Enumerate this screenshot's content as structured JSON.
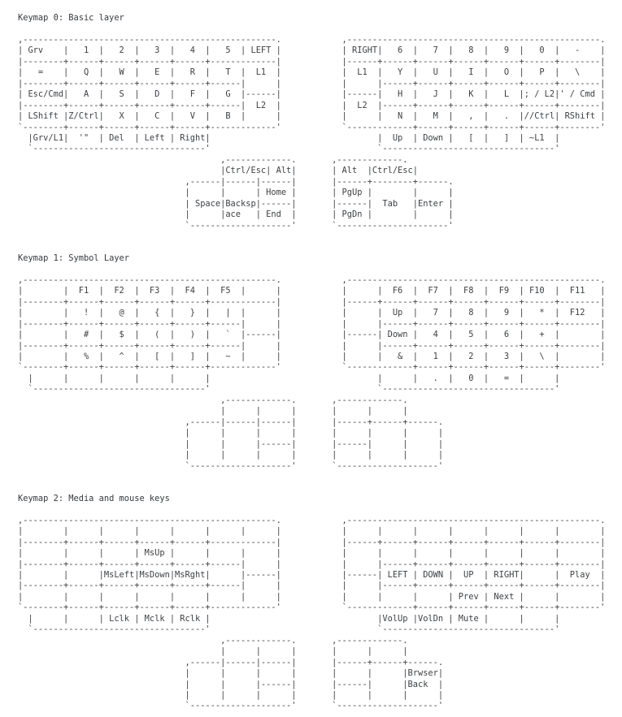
{
  "document": {
    "background_color": "#ffffff",
    "text_color": "#3c3f43"
  },
  "keymaps": [
    {
      "title": "Keymap 0: Basic layer",
      "art": ",--------------------------------------------------.            ,--------------------------------------------------.\n| Grv    |   1  |   2  |   3  |   4  |   5  | LEFT |            | RIGHT|   6  |   7  |   8  |   9  |   0  |   -    |\n|--------+------+------+------+------+-------------|            |------+------+------+------+------+------+--------|\n|   =    |   Q  |   W  |   E  |   R  |   T  |  L1  |            |  L1  |   Y  |   U  |   I  |   O  |   P  |   \\    |\n|--------+------+------+------+------+------|      |            |      |------+------+------+------+------+--------|\n| Esc/Cmd|   A  |   S  |   D  |   F  |   G  |------|            |------|   H  |   J  |   K  |   L  |; / L2|' / Cmd |\n|--------+------+------+------+------+------|  L2  |            |  L2  |------+------+------+------+------+--------|\n| LShift |Z/Ctrl|   X  |   C  |   V  |   B  |      |            |      |   N  |   M  |   ,  |   .  |//Ctrl| RShift |\n`--------+------+------+------+------+-------------'            `-------------+------+------+------+------+--------'\n  |Grv/L1|  '\"  | Del  | Left | Right|                                 |  Up  | Down |   [  |   ]  | ~L1  |\n  `----------------------------------'                                 `----------------------------------'\n                                        ,-------------.       ,-------------.\n                                        |Ctrl/Esc| Alt|       | Alt  |Ctrl/Esc|\n                                 ,------|------|------|       |------+--------+------.\n                                 |      |      | Home |       | PgUp |        |      |\n                                 | Space|Backsp|------|       |------|  Tab   |Enter |\n                                 |      |ace   | End  |       | PgDn |        |      |\n                                 `--------------------'       `----------------------'"
    },
    {
      "title": "Keymap 1: Symbol Layer",
      "art": ",--------------------------------------------------.            ,--------------------------------------------------.\n|        |  F1  |  F2  |  F3  |  F4  |  F5  |      |            |      |  F6  |  F7  |  F8  |  F9  | F10  |  F11   |\n|--------+------+------+------+------+-------------|            |------+------+------+------+------+------+--------|\n|        |   !  |   @  |   {  |   }  |   |  |      |            |      |  Up  |   7  |   8  |   9  |   *  |  F12   |\n|--------+------+------+------+------+------|      |            |      |------+------+------+------+------+--------|\n|        |   #  |   $  |   (  |   )  |   `  |------|            |------| Down |   4  |   5  |   6  |   +  |        |\n|--------+------+------+------+------+------|      |            |      |------+------+------+------+------+--------|\n|        |   %  |   ^  |   [  |   ]  |   ~  |      |            |      |   &  |   1  |   2  |   3  |   \\  |        |\n`--------+------+------+------+------+-------------'            `-------------+------+------+------+------+--------'\n  |      |      |      |      |      |                                 |      |   .  |   0  |   =  |      |\n  `----------------------------------'                                 `----------------------------------'\n                                        ,-------------.       ,-------------.\n                                        |      |      |       |      |      |\n                                 ,------|------|------|       |------+------+------.\n                                 |      |      |      |       |      |      |      |\n                                 |      |      |------|       |------|      |      |\n                                 |      |      |      |       |      |      |      |\n                                 `--------------------'       `--------------------'"
    },
    {
      "title": "Keymap 2: Media and mouse keys",
      "art": ",--------------------------------------------------.            ,--------------------------------------------------.\n|        |      |      |      |      |      |      |            |      |      |      |      |      |      |        |\n|--------+------+------+------+------+-------------|            |------+------+------+------+------+------+--------|\n|        |      |      | MsUp |      |      |      |            |      |      |      |      |      |      |        |\n|--------+------+------+------+------+------|      |            |      |------+------+------+------+------+--------|\n|        |      |MsLeft|MsDown|MsRght|      |------|            |------| LEFT | DOWN |  UP  | RIGHT|      |  Play  |\n|--------+------+------+------+------+------|      |            |      |------+------+------+------+------+--------|\n|        |      |      |      |      |      |      |            |      |      |      | Prev | Next |      |        |\n`--------+------+------+------+------+-------------'            `-------------+------+------+------+------+--------'\n  |      |      | Lclk | Mclk | Rclk |                                 |VolUp |VolDn | Mute |      |      |\n  `----------------------------------'                                 `----------------------------------'\n                                        ,-------------.       ,-------------.\n                                        |      |      |       |      |      |\n                                 ,------|------|------|       |------+------+------.\n                                 |      |      |      |       |      |      |Brwser|\n                                 |      |      |------|       |------|      |Back  |\n                                 |      |      |      |       |      |      |      |\n                                 `--------------------'       `--------------------'"
    }
  ]
}
